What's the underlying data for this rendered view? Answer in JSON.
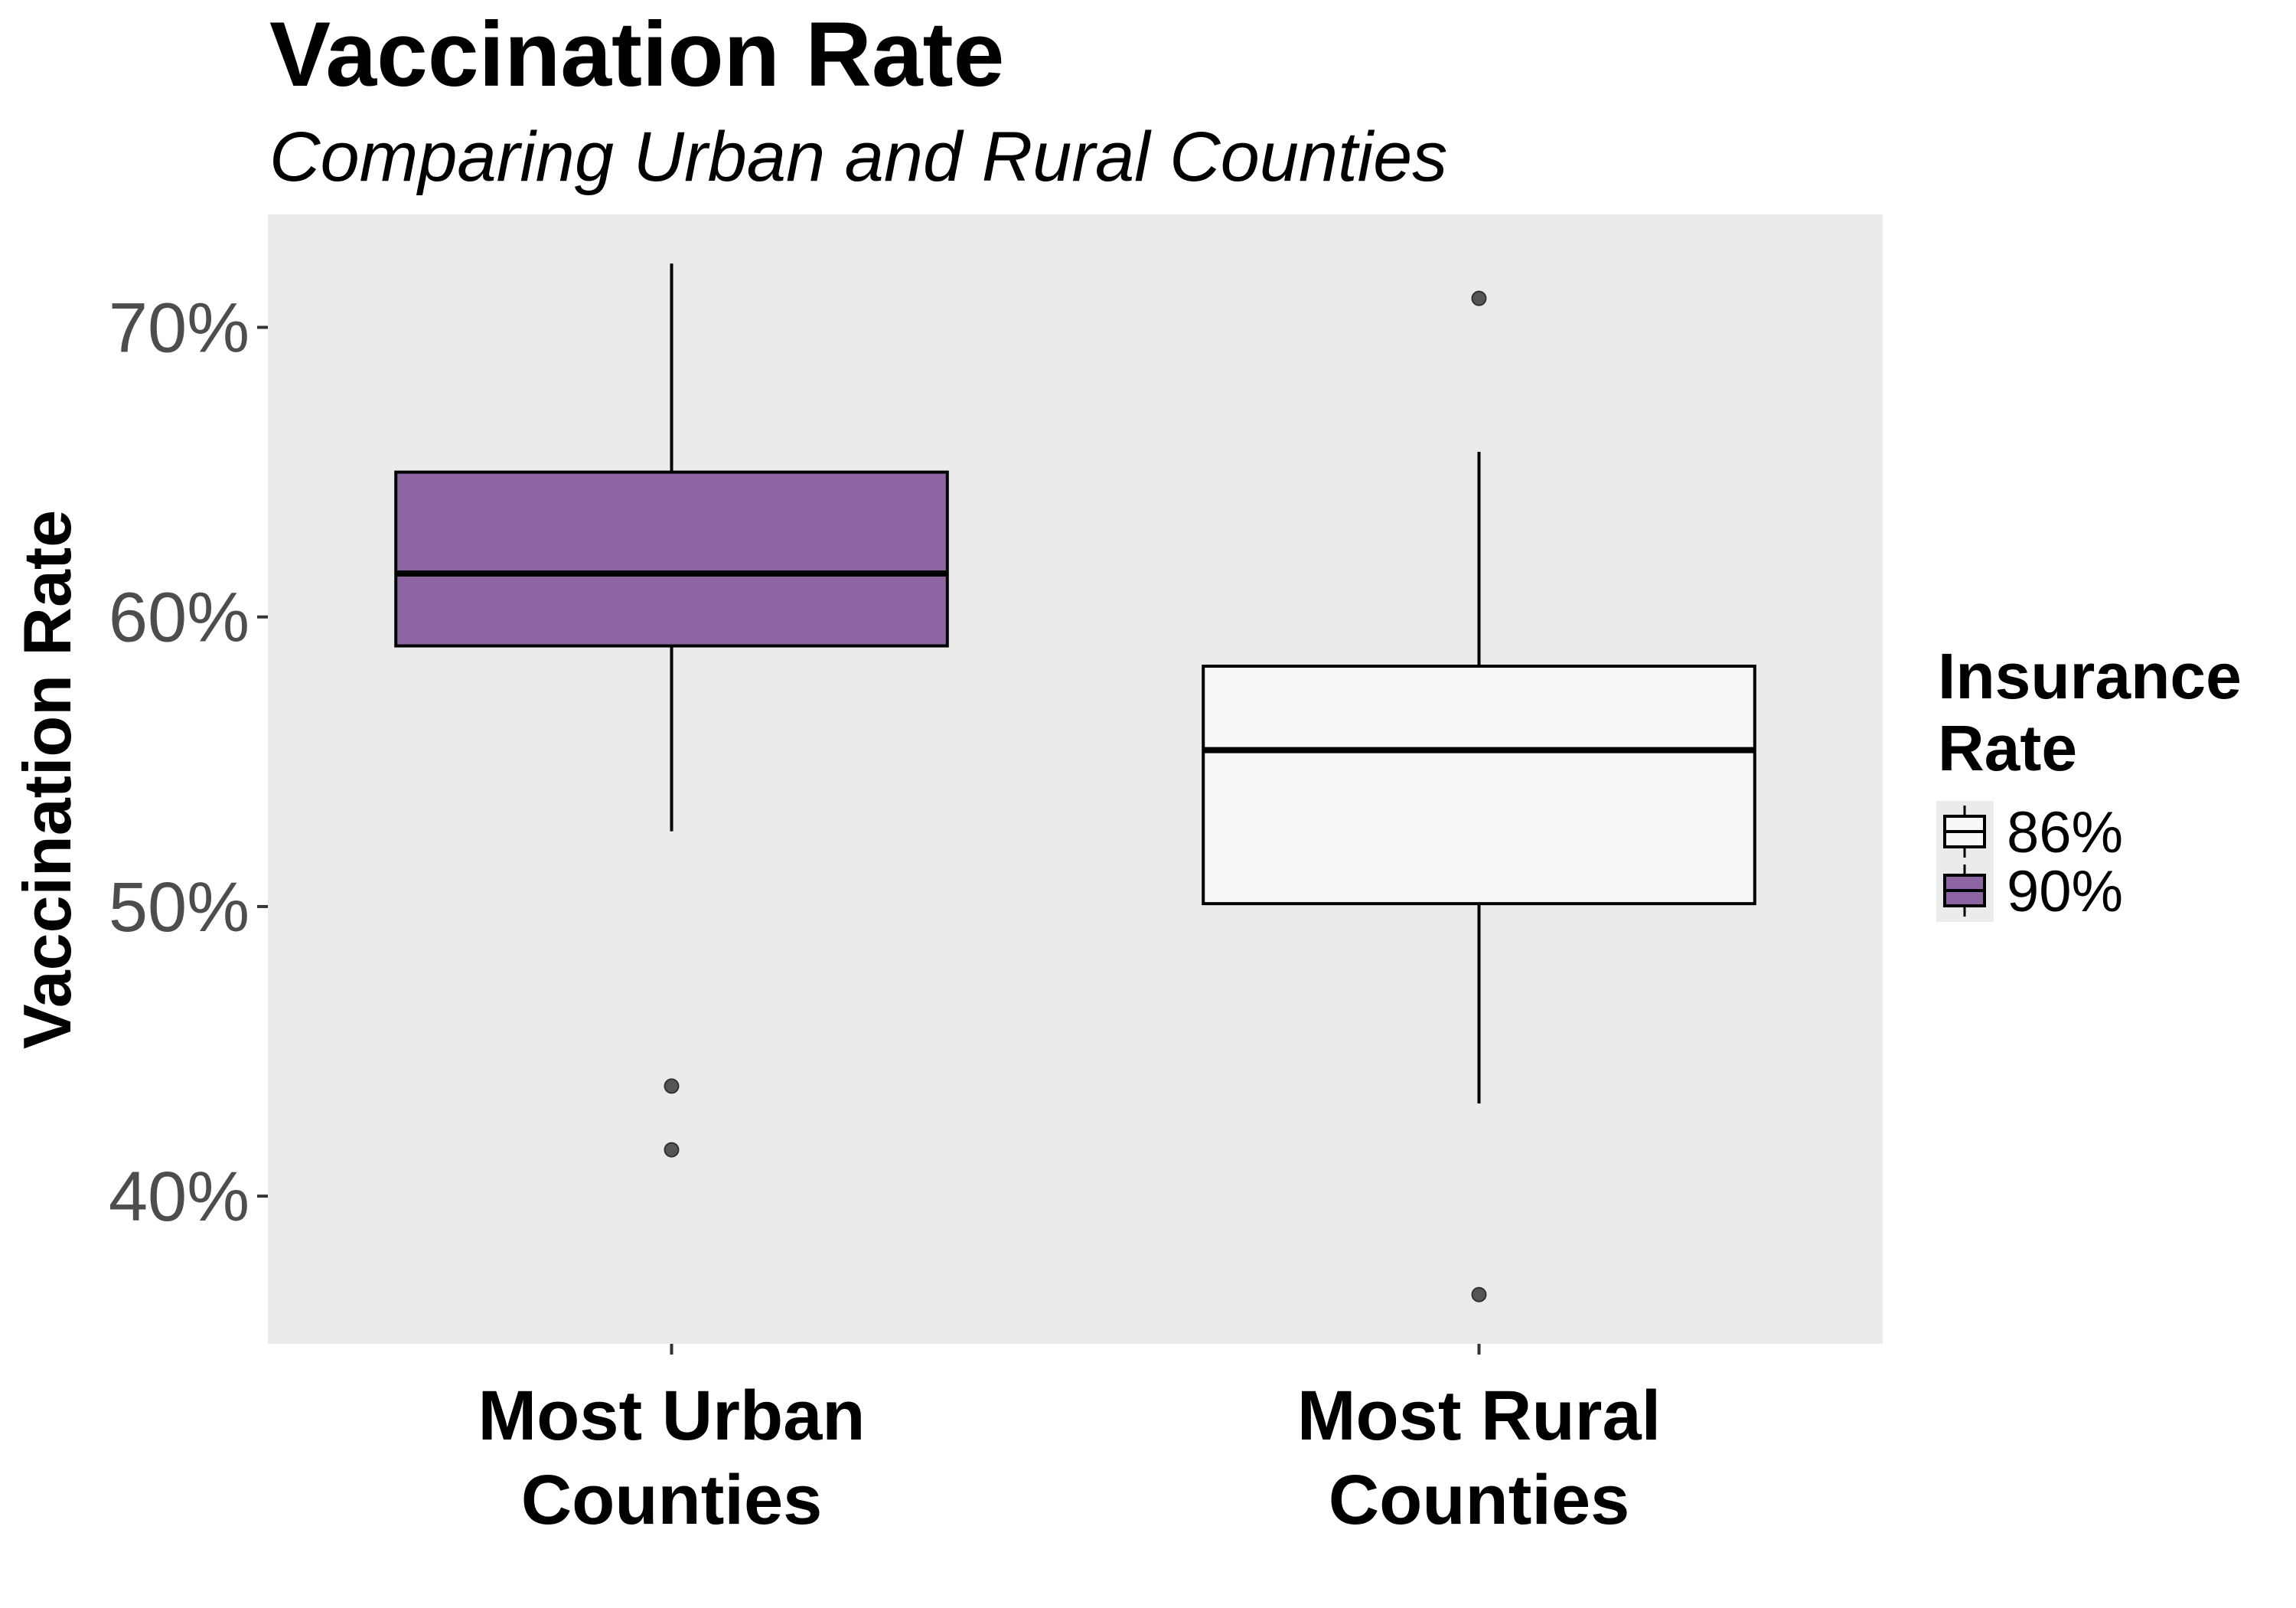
{
  "chart_data": {
    "type": "box",
    "title": "Vaccination Rate",
    "subtitle": "Comparing Urban and Rural Counties",
    "ylabel": "Vaccination Rate",
    "xlabel": "",
    "categories": [
      "Most Urban\nCounties",
      "Most Rural\nCounties"
    ],
    "ylim": [
      34.9,
      73.9
    ],
    "yticks": [
      40,
      50,
      60,
      70
    ],
    "ytick_labels": [
      "40%",
      "50%",
      "60%",
      "70%"
    ],
    "grid": false,
    "legend": {
      "title": "Insurance\nRate",
      "position": "right",
      "entries": [
        {
          "label": "86%",
          "color": "#f7f7f7"
        },
        {
          "label": "90%",
          "color": "#8e65a3"
        }
      ]
    },
    "boxes": [
      {
        "category": "Most Urban\nCounties",
        "group": "90%",
        "color": "#8e65a3",
        "whisker_low": 52.6,
        "q1": 59.0,
        "median": 61.5,
        "q3": 65.0,
        "whisker_high": 72.2,
        "outliers": [
          43.8,
          41.6
        ]
      },
      {
        "category": "Most Rural\nCounties",
        "group": "86%",
        "color": "#f7f7f7",
        "whisker_low": 43.2,
        "q1": 50.1,
        "median": 55.4,
        "q3": 58.3,
        "whisker_high": 65.7,
        "outliers": [
          71.0,
          36.6
        ]
      }
    ],
    "colors": {
      "panel": "#ebebeb",
      "outlier": "#555555"
    }
  }
}
